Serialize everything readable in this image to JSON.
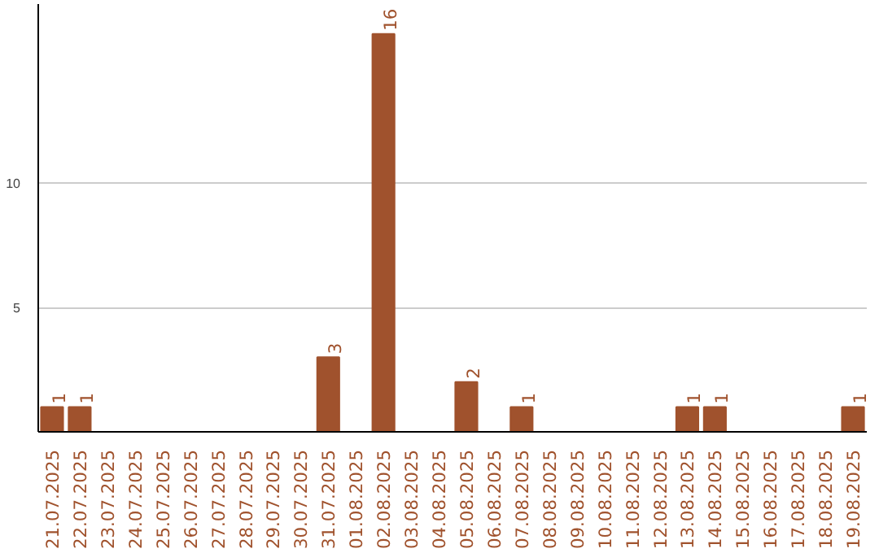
{
  "chart_data": {
    "type": "bar",
    "categories": [
      "21.07.2025",
      "22.07.2025",
      "23.07.2025",
      "24.07.2025",
      "25.07.2025",
      "26.07.2025",
      "27.07.2025",
      "28.07.2025",
      "29.07.2025",
      "30.07.2025",
      "31.07.2025",
      "01.08.2025",
      "02.08.2025",
      "03.08.2025",
      "04.08.2025",
      "05.08.2025",
      "06.08.2025",
      "07.08.2025",
      "08.08.2025",
      "09.08.2025",
      "10.08.2025",
      "11.08.2025",
      "12.08.2025",
      "13.08.2025",
      "14.08.2025",
      "15.08.2025",
      "16.08.2025",
      "17.08.2025",
      "18.08.2025",
      "19.08.2025"
    ],
    "values": [
      1,
      1,
      0,
      0,
      0,
      0,
      0,
      0,
      0,
      0,
      3,
      0,
      16,
      0,
      0,
      2,
      0,
      1,
      0,
      0,
      0,
      0,
      0,
      1,
      1,
      0,
      0,
      0,
      0,
      1
    ],
    "value_labels": [
      "1",
      "1",
      null,
      null,
      null,
      null,
      null,
      null,
      null,
      null,
      "3",
      null,
      "16",
      null,
      null,
      "2",
      null,
      "1",
      null,
      null,
      null,
      null,
      null,
      "1",
      "1",
      null,
      null,
      null,
      null,
      "1"
    ],
    "color": "#a0522d",
    "ylim": [
      0,
      17.2
    ],
    "yticks": [
      {
        "value": 0,
        "label": null
      },
      5,
      10
    ],
    "grid": "y"
  }
}
